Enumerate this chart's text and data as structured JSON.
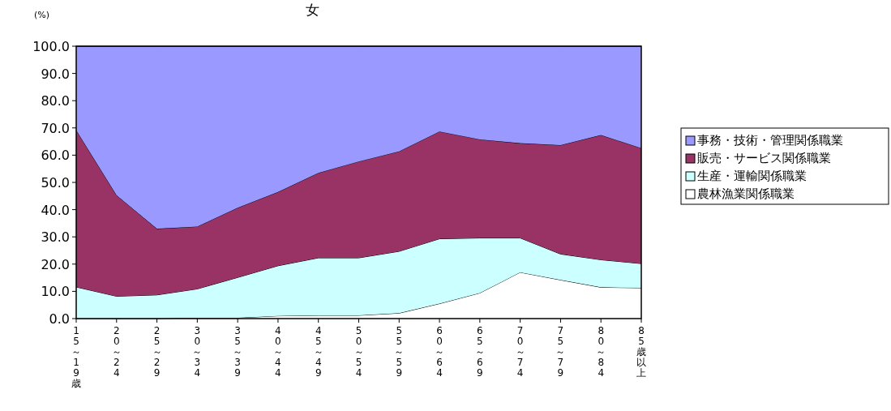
{
  "chart_data": {
    "type": "area",
    "stacked": true,
    "title": "女",
    "ylabel": "(%)",
    "categories": [
      "15～19歳",
      "20～24",
      "25～29",
      "30～34",
      "35～39",
      "40～44",
      "45～49",
      "50～54",
      "55～59",
      "60～64",
      "65～69",
      "70～74",
      "75～79",
      "80～84",
      "85歳以上"
    ],
    "series": [
      {
        "name": "農林漁業関係職業",
        "color": "#ffffff",
        "values": [
          0,
          0,
          0,
          0.3,
          0.3,
          1.0,
          1.2,
          1.2,
          2.0,
          5.5,
          9.4,
          17.0,
          14.2,
          11.5,
          11.3
        ]
      },
      {
        "name": "生産・運輸関係職業",
        "color": "#ccffff",
        "values": [
          11.6,
          8.2,
          8.7,
          10.6,
          14.8,
          18.4,
          21.1,
          21.1,
          22.7,
          23.8,
          20.2,
          12.6,
          9.5,
          10.1,
          8.9
        ]
      },
      {
        "name": "販売・サービス関係職業",
        "color": "#993366",
        "values": [
          57.6,
          37.1,
          24.3,
          22.9,
          25.6,
          27.1,
          31.2,
          35.4,
          36.7,
          39.4,
          36.2,
          34.8,
          40.0,
          45.8,
          42.4
        ]
      },
      {
        "name": "事務・技術・管理関係職業",
        "color": "#9999ff",
        "values": [
          30.8,
          54.7,
          67.0,
          66.2,
          59.3,
          53.5,
          46.5,
          42.3,
          38.6,
          31.3,
          34.2,
          35.6,
          36.3,
          32.6,
          37.4
        ]
      }
    ],
    "ylim": [
      0,
      100
    ],
    "yticks": [
      {
        "value": 0,
        "label": "0.0"
      },
      {
        "value": 10,
        "label": "10.0"
      },
      {
        "value": 20,
        "label": "20.0"
      },
      {
        "value": 30,
        "label": "30.0"
      },
      {
        "value": 40,
        "label": "40.0"
      },
      {
        "value": 50,
        "label": "50.0"
      },
      {
        "value": 60,
        "label": "60.0"
      },
      {
        "value": 70,
        "label": "70.0"
      },
      {
        "value": 80,
        "label": "80.0"
      },
      {
        "value": 90,
        "label": "90.0"
      },
      {
        "value": 100,
        "label": "100.0"
      }
    ],
    "grid": false,
    "legend": "right"
  }
}
